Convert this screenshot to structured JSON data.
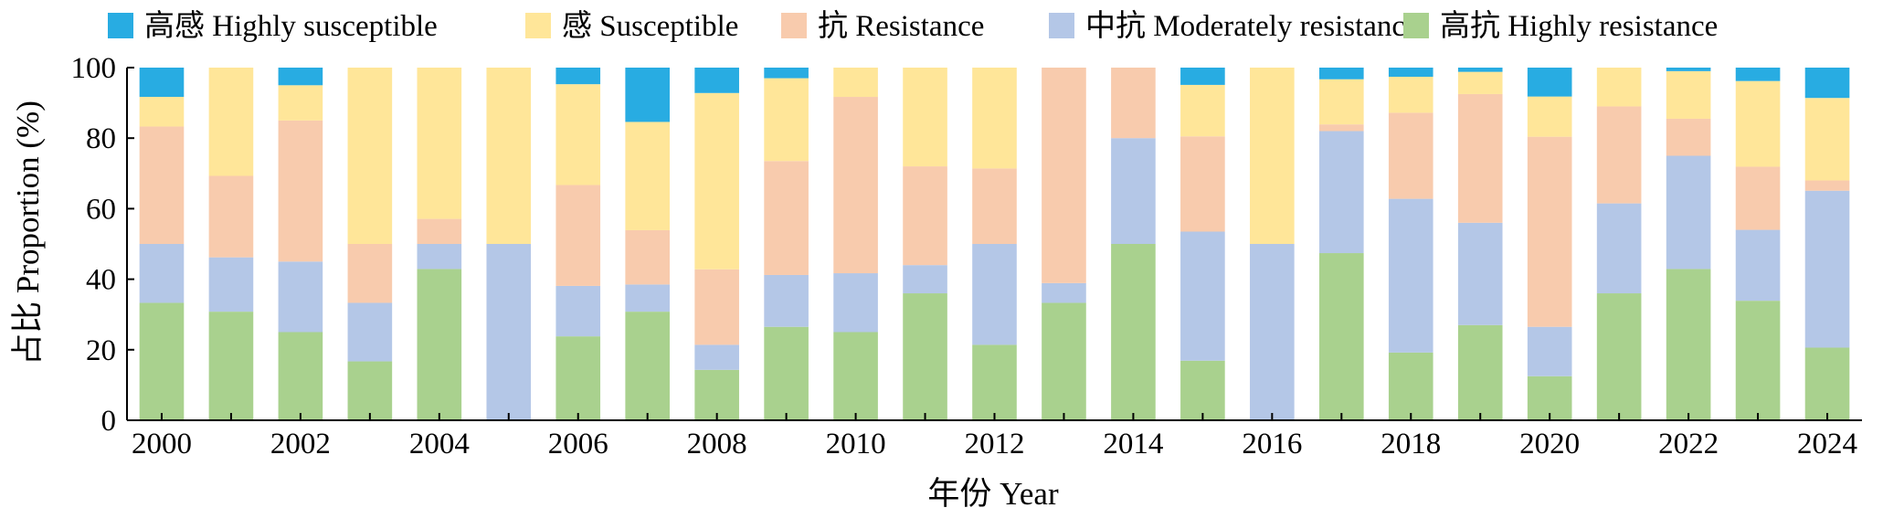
{
  "chart_data": {
    "type": "bar",
    "stacked": true,
    "xlabel": "年份 Year",
    "ylabel": "占比 Proportion (%)",
    "ylim": [
      0,
      100
    ],
    "yticks": [
      0,
      20,
      40,
      60,
      80,
      100
    ],
    "legend_position": "top",
    "grid": false,
    "categories": [
      "2000",
      "2001",
      "2002",
      "2003",
      "2004",
      "2005",
      "2006",
      "2007",
      "2008",
      "2009",
      "2010",
      "2011",
      "2012",
      "2013",
      "2014",
      "2015",
      "2016",
      "2017",
      "2018",
      "2019",
      "2020",
      "2021",
      "2022",
      "2023",
      "2024"
    ],
    "tick_labels": [
      "2000",
      "2002",
      "2004",
      "2006",
      "2008",
      "2010",
      "2012",
      "2014",
      "2016",
      "2018",
      "2020",
      "2022",
      "2024"
    ],
    "series": [
      {
        "name": "高抗 Highly resistance",
        "color": "#a9d18e",
        "values": [
          33.3,
          30.8,
          25.0,
          16.7,
          42.9,
          0,
          23.8,
          30.8,
          14.3,
          26.5,
          25.0,
          36.0,
          21.4,
          33.3,
          50.0,
          16.9,
          0,
          47.4,
          19.2,
          27.0,
          12.5,
          36.0,
          42.9,
          33.9,
          20.6
        ]
      },
      {
        "name": "中抗 Moderately resistance",
        "color": "#b4c7e7",
        "values": [
          16.7,
          15.4,
          20.0,
          16.6,
          7.1,
          50.0,
          14.3,
          7.7,
          7.1,
          14.7,
          16.7,
          8.0,
          28.6,
          5.6,
          30.0,
          36.6,
          50.0,
          34.6,
          43.6,
          29.0,
          14.0,
          25.5,
          32.1,
          20.1,
          44.5
        ]
      },
      {
        "name": "抗 Resistance",
        "color": "#f8cbad",
        "values": [
          33.3,
          23.1,
          40.0,
          16.7,
          7.1,
          0,
          28.6,
          15.4,
          21.4,
          32.3,
          50.0,
          28.0,
          21.4,
          61.1,
          20.0,
          27.0,
          0,
          1.9,
          24.4,
          36.5,
          53.9,
          27.5,
          10.5,
          17.9,
          2.9
        ]
      },
      {
        "name": "感 Susceptible",
        "color": "#ffe699",
        "values": [
          8.4,
          30.7,
          10.0,
          50.0,
          42.9,
          50.0,
          28.6,
          30.7,
          50.0,
          23.5,
          8.3,
          28.0,
          28.6,
          0,
          0,
          14.6,
          50.0,
          12.8,
          10.2,
          6.3,
          11.4,
          11.0,
          13.5,
          24.3,
          23.4
        ]
      },
      {
        "name": "高感 Highly susceptible",
        "color": "#28ace2",
        "values": [
          8.3,
          0,
          5.0,
          0,
          0,
          0,
          4.7,
          15.4,
          7.2,
          3.0,
          0,
          0,
          0,
          0,
          0,
          4.9,
          0,
          3.3,
          2.6,
          1.2,
          8.2,
          0,
          1.0,
          3.8,
          8.6
        ]
      }
    ]
  }
}
